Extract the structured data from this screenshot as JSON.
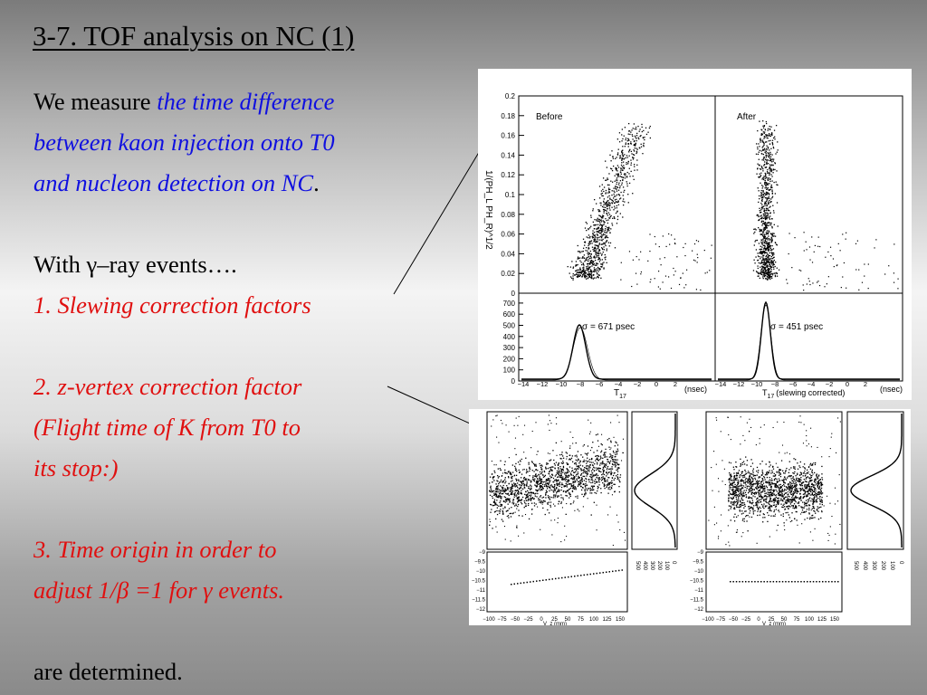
{
  "slide": {
    "title": "3-7. TOF analysis on NC (1)",
    "intro_plain": "We measure ",
    "intro_highlight_1": "the time difference",
    "intro_highlight_2": "between kaon injection onto T0",
    "intro_highlight_3": "and nucleon detection on NC",
    "intro_end": ".",
    "with_line": "With γ–ray events….",
    "item1": "1. Slewing correction factors",
    "item2_line1": "2. z-vertex correction factor",
    "item2_line2": "(Flight time of K from T0 to",
    "item2_line3": "its stop:)",
    "item3_line1": "3. Time origin in order to",
    "item3_line2": "adjust 1/β =1 for γ events.",
    "closing": "are determined."
  },
  "colors": {
    "highlight_blue": "#1010e0",
    "highlight_red": "#e01010"
  },
  "figure_top": {
    "left_label": "Before",
    "right_label": "After",
    "ylabel": "1/(PH_L PH_R)^1/2",
    "scatter_yticks": [
      "0",
      "0.02",
      "0.04",
      "0.06",
      "0.08",
      "0.1",
      "0.12",
      "0.14",
      "0.16",
      "0.18",
      "0.2"
    ],
    "hist_yticks": [
      "0",
      "100",
      "200",
      "300",
      "400",
      "500",
      "600",
      "700"
    ],
    "xticks_left": [
      "−14",
      "−12",
      "−10",
      "−8",
      "−6",
      "−4",
      "−2",
      "0",
      "2"
    ],
    "xticks_right": [
      "−14",
      "−12",
      "−10",
      "−8",
      "−6",
      "−4",
      "−2",
      "0",
      "2"
    ],
    "sigma_before": "σ = 671 psec",
    "sigma_after": "σ = 451 psec",
    "xlabel_left": "T",
    "xlabel_left_sub": "17",
    "xlabel_unit": "(nsec)",
    "xlabel_right": "T",
    "xlabel_right_sub": "17",
    "xlabel_right_note": "(slewing corrected)"
  },
  "figure_bottom": {
    "xticks": [
      "−100",
      "−75",
      "−50",
      "−25",
      "0",
      "25",
      "50",
      "75",
      "100",
      "125",
      "150"
    ],
    "yticks": [
      "−9",
      "−9.5",
      "−10",
      "−10.5",
      "−11",
      "−11.5",
      "−12"
    ],
    "proj_ticks": [
      "500",
      "400",
      "300",
      "200",
      "100",
      "0"
    ],
    "xlabel": "V_z (mm)"
  }
}
